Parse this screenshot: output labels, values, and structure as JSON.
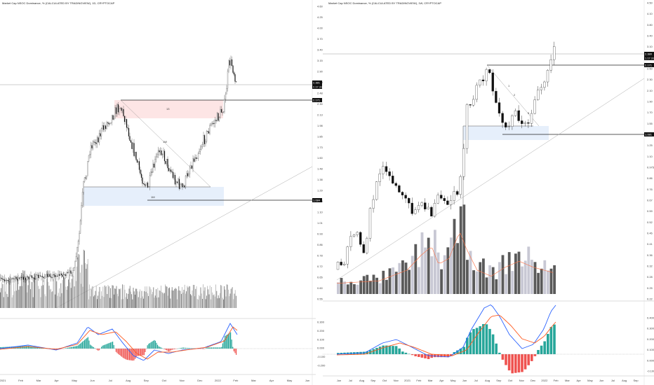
{
  "colors": {
    "up": "#ffffff",
    "down": "#111111",
    "vol": "#555555",
    "vol_light": "#c8c8d4",
    "macd": "#2962ff",
    "signal": "#ff5a1f",
    "hist_pos": "#26a69a",
    "hist_pos_light": "#b2dfdb",
    "hist_neg": "#ef5350",
    "hist_neg_light": "#ffcdd2",
    "zone_red": "#fde5e5",
    "zone_blue": "#e6effb",
    "price_tag": "#111111"
  },
  "chart_data": [
    {
      "type": "candlestick",
      "title": "Market Cap NSOC Dominance, % (CALCULATED BY TRADINGVIEW), 1D, CRYPTOCAP",
      "x_tick_labels": [
        "2021",
        "Feb",
        "Mar",
        "Apr",
        "May",
        "Jun",
        "Jul",
        "Aug",
        "Sep",
        "Oct",
        "Nov",
        "Dec",
        "2022",
        "Feb",
        "Mar",
        "Apr",
        "May",
        "Jun"
      ],
      "y_tick_labels": [
        "4.60",
        "4.25",
        "4.00",
        "3.70",
        "3.40",
        "3.15",
        "2.90",
        "2.70",
        "2.48",
        "2.30",
        "2.13",
        "1.98",
        "1.85",
        "1.73",
        "1.60",
        "1.48",
        "1.38",
        "1.29",
        "1.20",
        "1.10",
        "1.01",
        "0.93",
        "0.86",
        "0.78",
        "0.72",
        "0.65",
        "0.60",
        "0.55"
      ],
      "ylim": [
        0.55,
        4.6
      ],
      "price_tags": [
        "2.381",
        "2.17.31",
        "2.171",
        "1.084"
      ],
      "annotations": [
        "13",
        "1M",
        "1W"
      ],
      "macd_tick_labels": [
        "0.300",
        "0.200",
        "0.100",
        "0.000",
        "-0.100",
        "-0.200"
      ]
    },
    {
      "type": "candlestick",
      "title": "Market Cap NSOC Dominance, % (CALCULATED BY TRADINGVIEW), 1W, CRYPTOCAP",
      "x_tick_labels": [
        "Jun",
        "Jul",
        "Aug",
        "Sep",
        "Oct",
        "Nov",
        "2021",
        "Feb",
        "Mar",
        "Apr",
        "May",
        "Jun",
        "Jul",
        "Aug",
        "Sep",
        "Oct",
        "Nov",
        "Dec",
        "2022",
        "Feb",
        "Mar",
        "Apr",
        "May",
        "Jun",
        "Jul",
        "Aug",
        "Sep"
      ],
      "y_tick_labels": [
        "4.50",
        "4.10",
        "3.80",
        "3.40",
        "3.10",
        "2.80",
        "2.50",
        "2.30",
        "2.10",
        "1.90",
        "1.70",
        "1.55",
        "1.40",
        "1.25",
        "1.10",
        "0.975",
        "0.86",
        "0.76",
        "0.67",
        "0.59",
        "0.52",
        "0.46",
        "0.41",
        "0.36",
        "0.32",
        "0.28",
        "0.25",
        "0.22"
      ],
      "ylim": [
        0.22,
        4.5
      ],
      "price_tags": [
        "2.380",
        "1.17.31",
        "2.171",
        "1.081"
      ],
      "annotations": [
        "1",
        "2",
        "3",
        "5"
      ],
      "macd_tick_labels": [
        "0.400",
        "0.300",
        "0.200",
        "0.100",
        "0.000",
        "-0.100"
      ]
    }
  ]
}
